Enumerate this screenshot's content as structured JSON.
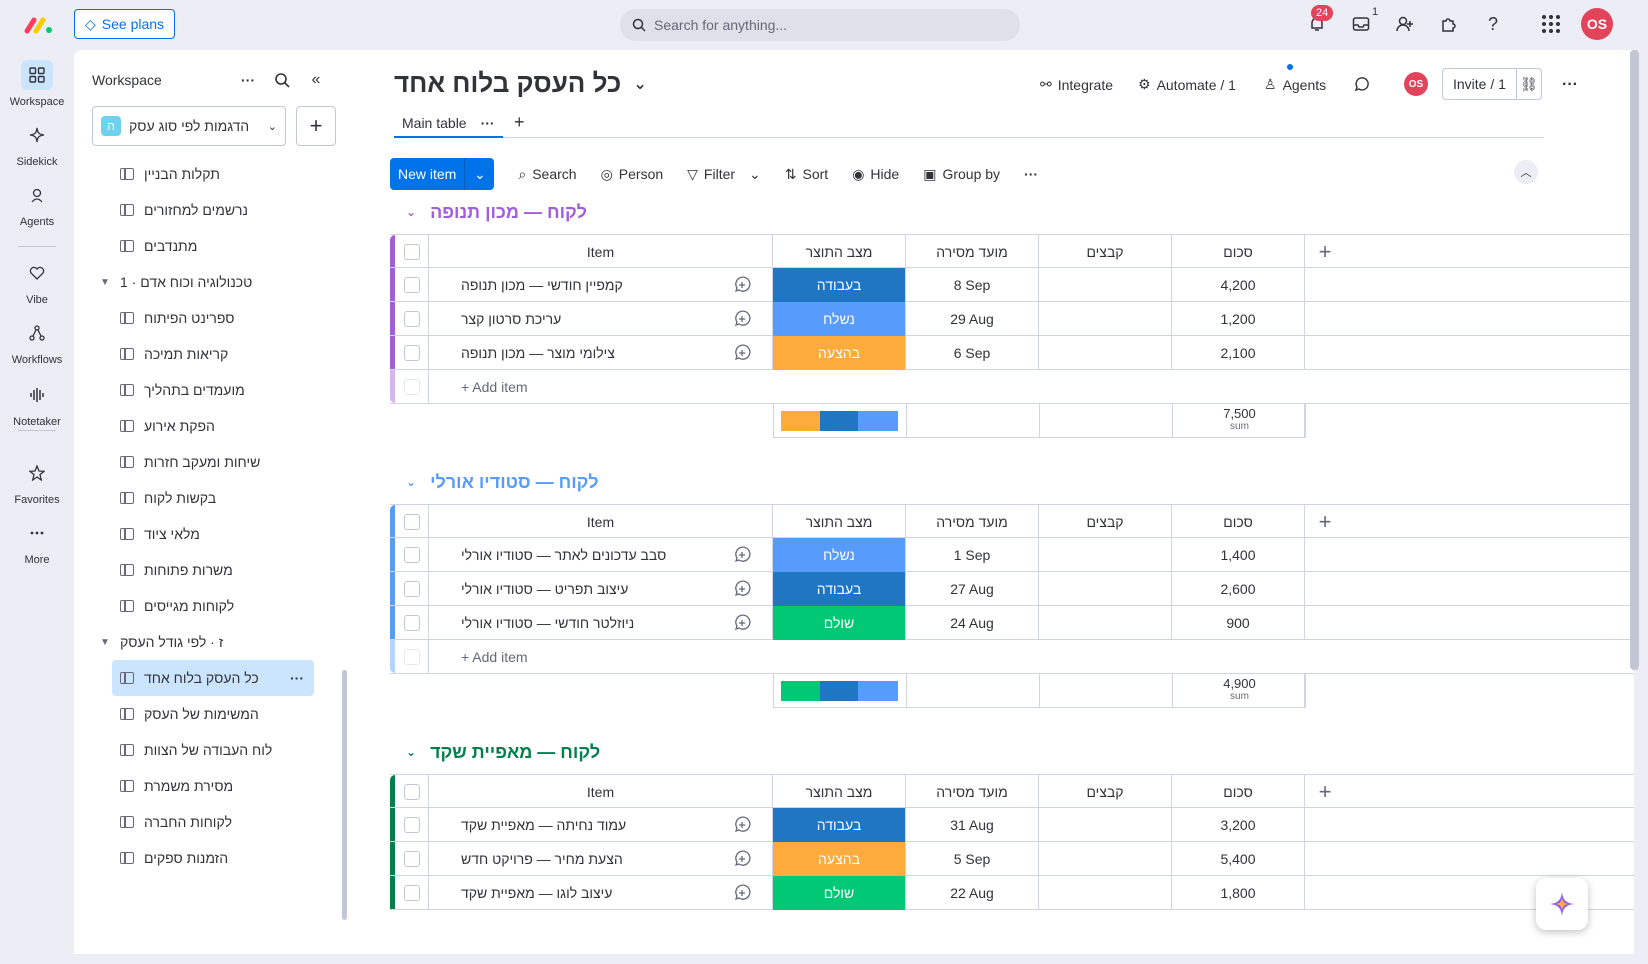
{
  "topbar": {
    "see_plans": "See plans",
    "search_placeholder": "Search for anything...",
    "notif_count": "24",
    "inbox_count": "1",
    "avatar": "OS"
  },
  "rail": [
    {
      "label": "Workspace",
      "icon": "grid-icon"
    },
    {
      "label": "Sidekick",
      "icon": "sparkle-icon"
    },
    {
      "label": "Agents",
      "icon": "agent-icon"
    },
    {
      "label": "Vibe",
      "icon": "heart-icon"
    },
    {
      "label": "Workflows",
      "icon": "workflow-icon"
    },
    {
      "label": "Notetaker",
      "icon": "soundwave-icon"
    },
    {
      "label": "Favorites",
      "icon": "star-icon"
    },
    {
      "label": "More",
      "icon": "more-icon"
    }
  ],
  "sidebar": {
    "title": "Workspace",
    "workspace_name": "הדגמות לפי סוג עסק",
    "workspace_badge": "ה",
    "items": [
      {
        "label": "תקלות הבניין",
        "type": "board"
      },
      {
        "label": "נרשמים למחזורים",
        "type": "board"
      },
      {
        "label": "מתנדבים",
        "type": "board"
      },
      {
        "label": "1 · טכנולוגיה וכוח אדם",
        "type": "folder"
      },
      {
        "label": "ספרינט הפיתוח",
        "type": "board"
      },
      {
        "label": "קריאות תמיכה",
        "type": "board"
      },
      {
        "label": "מועמדים בתהליך",
        "type": "board"
      },
      {
        "label": "הפקת אירוע",
        "type": "board"
      },
      {
        "label": "שיחות ומעקב חזרות",
        "type": "board"
      },
      {
        "label": "בקשות לקוח",
        "type": "board"
      },
      {
        "label": "מלאי ציוד",
        "type": "board"
      },
      {
        "label": "משרות פתוחות",
        "type": "board"
      },
      {
        "label": "לקוחות מגייסים",
        "type": "board"
      },
      {
        "label": "ז · לפי גודל העסק",
        "type": "folder"
      },
      {
        "label": "כל העסק בלוח אחד",
        "type": "active"
      },
      {
        "label": "המשימות של העסק",
        "type": "board"
      },
      {
        "label": "לוח העבודה של הצוות",
        "type": "board"
      },
      {
        "label": "מסירת משמרת",
        "type": "board"
      },
      {
        "label": "לקוחות החברה",
        "type": "board"
      },
      {
        "label": "הזמנות ספקים",
        "type": "board"
      }
    ]
  },
  "board": {
    "title": "כל העסק בלוח אחד",
    "integrate": "Integrate",
    "automate": "Automate / 1",
    "agents": "Agents",
    "invite": "Invite / 1",
    "avatar": "OS",
    "tab": "Main table"
  },
  "toolbar": {
    "new_item": "New item",
    "search": "Search",
    "person": "Person",
    "filter": "Filter",
    "sort": "Sort",
    "hide": "Hide",
    "group_by": "Group by"
  },
  "columns": {
    "item": "Item",
    "status": "מצב התוצר",
    "date": "מועד מסירה",
    "files": "קבצים",
    "sum": "סכום"
  },
  "add_item": "+ Add item",
  "sum_label": "sum",
  "status_colors": {
    "בעבודה": "#1f76c2",
    "נשלח": "#579bfc",
    "בהצעה": "#fdab3d",
    "שולם": "#00c875"
  },
  "groups": [
    {
      "title": "לקוח — מכון תנופה",
      "color": "#a25ddc",
      "sum": "7,500",
      "rows": [
        {
          "item": "קמפיין חודשי — מכון תנופה",
          "status": "בעבודה",
          "date": "8 Sep",
          "sum": "4,200"
        },
        {
          "item": "עריכת סרטון קצר",
          "status": "נשלח",
          "date": "29 Aug",
          "sum": "1,200"
        },
        {
          "item": "צילומי מוצר — מכון תנופה",
          "status": "בהצעה",
          "date": "6 Sep",
          "sum": "2,100"
        }
      ],
      "dist": [
        {
          "status": "בהצעה",
          "frac": 0.33
        },
        {
          "status": "בעבודה",
          "frac": 0.33
        },
        {
          "status": "נשלח",
          "frac": 0.34
        }
      ]
    },
    {
      "title": "לקוח — סטודיו אורלי",
      "color": "#579bfc",
      "sum": "4,900",
      "rows": [
        {
          "item": "סבב עדכונים לאתר — סטודיו אורלי",
          "status": "נשלח",
          "date": "1 Sep",
          "sum": "1,400"
        },
        {
          "item": "עיצוב תפריט — סטודיו אורלי",
          "status": "בעבודה",
          "date": "27 Aug",
          "sum": "2,600"
        },
        {
          "item": "ניוזלטר חודשי — סטודיו אורלי",
          "status": "שולם",
          "date": "24 Aug",
          "sum": "900"
        }
      ],
      "dist": [
        {
          "status": "שולם",
          "frac": 0.33
        },
        {
          "status": "בעבודה",
          "frac": 0.33
        },
        {
          "status": "נשלח",
          "frac": 0.34
        }
      ]
    },
    {
      "title": "לקוח — מאפיית שקד",
      "color": "#037f4c",
      "rows": [
        {
          "item": "עמוד נחיתה — מאפיית שקד",
          "status": "בעבודה",
          "date": "31 Aug",
          "sum": "3,200"
        },
        {
          "item": "הצעת מחיר — פרויקט חדש",
          "status": "בהצעה",
          "date": "5 Sep",
          "sum": "5,400"
        },
        {
          "item": "עיצוב לוגו — מאפיית שקד",
          "status": "שולם",
          "date": "22 Aug",
          "sum": "1,800"
        }
      ]
    }
  ]
}
